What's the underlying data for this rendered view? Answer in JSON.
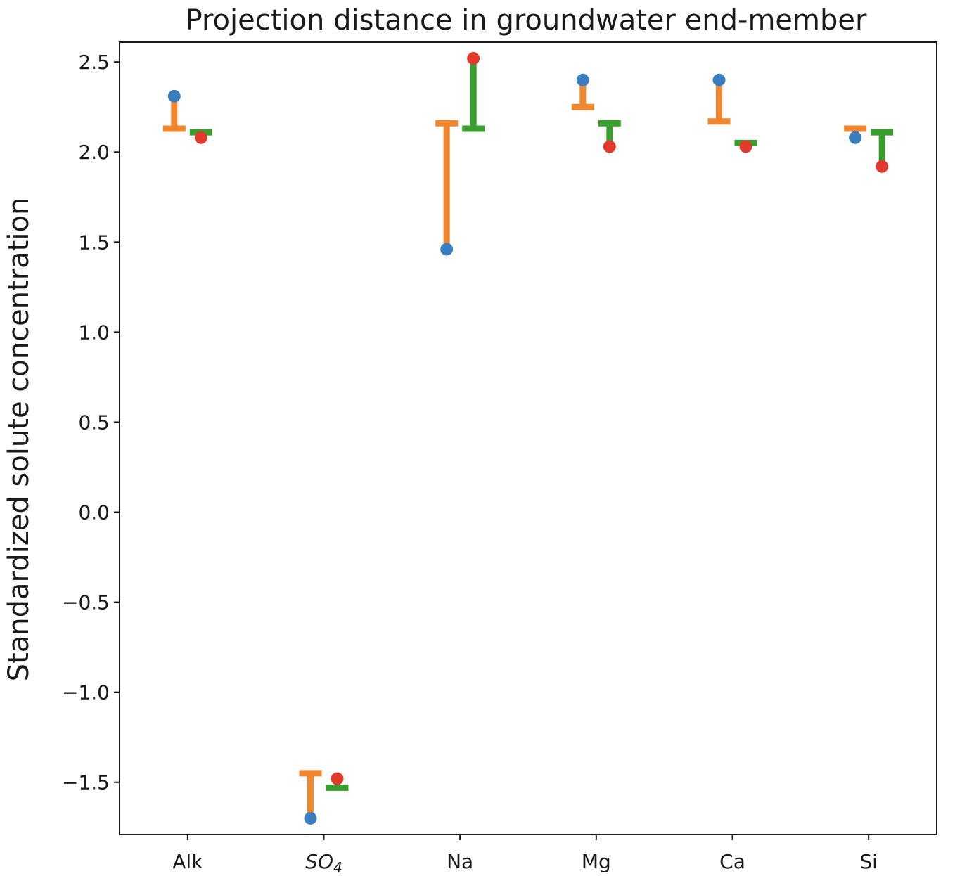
{
  "chart_data": {
    "type": "scatter",
    "title": "Projection distance in groundwater end-member",
    "xlabel": "",
    "ylabel": "Standardized solute concentration",
    "categories": [
      "Alk",
      "SO4",
      "Na",
      "Mg",
      "Ca",
      "Si"
    ],
    "category_labels": [
      {
        "base": "Alk",
        "sub": "",
        "italic": false
      },
      {
        "base": "SO",
        "sub": "4",
        "italic": true
      },
      {
        "base": "Na",
        "sub": "",
        "italic": false
      },
      {
        "base": "Mg",
        "sub": "",
        "italic": false
      },
      {
        "base": "Ca",
        "sub": "",
        "italic": false
      },
      {
        "base": "Si",
        "sub": "",
        "italic": false
      }
    ],
    "ylim": [
      -1.79,
      2.61
    ],
    "yticks": [
      -1.5,
      -1.0,
      -0.5,
      0.0,
      0.5,
      1.0,
      1.5,
      2.0,
      2.5
    ],
    "ytick_labels": [
      "−1.5",
      "−1.0",
      "−0.5",
      "0.0",
      "0.5",
      "1.0",
      "1.5",
      "2.0",
      "2.5"
    ],
    "grid": false,
    "series": [
      {
        "values": [
          2.31,
          -1.7,
          1.46,
          2.4,
          2.4,
          2.08
        ],
        "color": "#3a7ebf",
        "kind": "point"
      },
      {
        "values": [
          2.13,
          -1.45,
          2.16,
          2.25,
          2.17,
          2.13
        ],
        "color": "#f0862e",
        "kind": "projection"
      },
      {
        "values": [
          2.08,
          -1.48,
          2.52,
          2.03,
          2.03,
          1.92
        ],
        "color": "#e23b2e",
        "kind": "point"
      },
      {
        "values": [
          2.11,
          -1.53,
          2.13,
          2.16,
          2.05,
          2.11
        ],
        "color": "#3a9e2f",
        "kind": "projection"
      }
    ]
  }
}
